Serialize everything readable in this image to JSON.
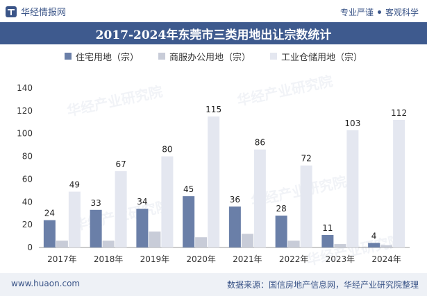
{
  "header": {
    "logo_text": "华经情报网",
    "slogan_left": "专业严谨",
    "slogan_right": "客观科学"
  },
  "chart_data": {
    "type": "bar",
    "title": "2017-2024年东莞市三类用地出让宗数统计",
    "categories": [
      "2017年",
      "2018年",
      "2019年",
      "2020年",
      "2021年",
      "2022年",
      "2023年",
      "2024年"
    ],
    "series": [
      {
        "name": "住宅用地（宗）",
        "color": "#6a7fa8",
        "values": [
          24,
          33,
          34,
          45,
          36,
          28,
          11,
          4
        ]
      },
      {
        "name": "商服办公用地（宗）",
        "color": "#c8ccd8",
        "values": [
          6,
          6,
          14,
          9,
          12,
          6,
          3,
          2
        ]
      },
      {
        "name": "工业仓储用地（宗）",
        "color": "#e4e7f0",
        "values": [
          49,
          67,
          80,
          115,
          86,
          72,
          103,
          112
        ]
      }
    ],
    "labeled_series": [
      0,
      2
    ],
    "ylim": [
      0,
      140
    ],
    "yticks": [
      0,
      20,
      40,
      60,
      80,
      100,
      120,
      140
    ],
    "grid": false,
    "legend": "top-center"
  },
  "watermark": {
    "company": "华经产业研究院",
    "site": "www.huaon.com"
  },
  "footer": {
    "site": "www.huaon.com",
    "source": "数据来源：国信房地产信息网，华经产业研究院整理"
  }
}
